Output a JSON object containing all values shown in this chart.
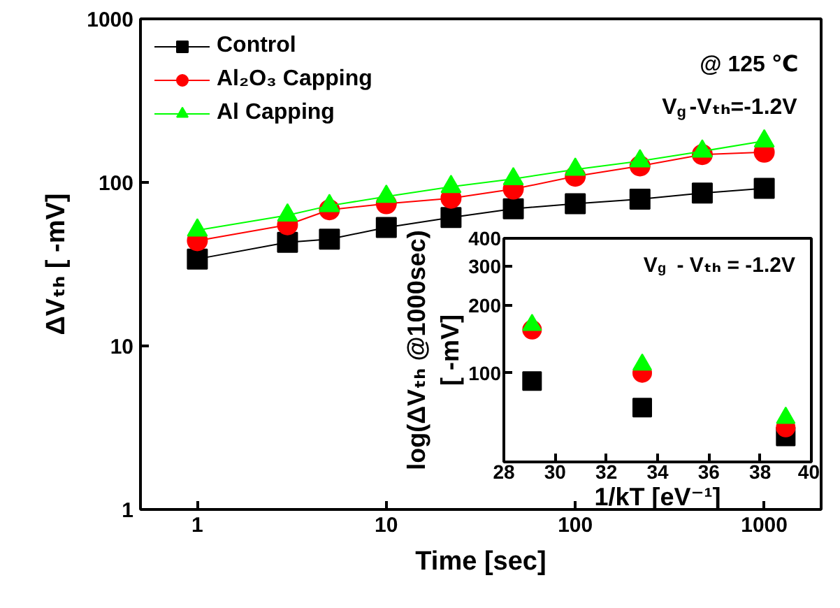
{
  "chart_data": [
    {
      "type": "line",
      "xlabel": "Time [sec]",
      "ylabel": "ΔVₜₕ [ -mV]",
      "log": "xy",
      "xlim": [
        0.5,
        2000
      ],
      "ylim": [
        1,
        1000
      ],
      "xticks": [
        1,
        10,
        100,
        1000
      ],
      "yticks": [
        1,
        10,
        100,
        1000
      ],
      "legend": "top left",
      "annotations": [
        "@ 125 ℃",
        "V$_{g}$-Vₜₕ=-1.2V"
      ],
      "x": [
        1,
        3,
        5,
        10,
        22,
        47,
        100,
        220,
        470,
        1000
      ],
      "series": [
        {
          "name": "Control",
          "color": "#000000",
          "marker": "square",
          "values": [
            34,
            43,
            45,
            53,
            61,
            69,
            74,
            79,
            86,
            92
          ]
        },
        {
          "name": "Al₂O₃ Capping",
          "color": "#ff0000",
          "marker": "circle",
          "values": [
            44,
            55,
            68,
            74,
            80,
            91,
            109,
            126,
            148,
            153
          ]
        },
        {
          "name": "Al Capping",
          "color": "#00ff00",
          "marker": "triangle",
          "values": [
            51,
            63,
            72,
            82,
            94,
            105,
            120,
            135,
            155,
            179
          ]
        }
      ]
    },
    {
      "type": "scatter",
      "xlabel": "1/kT [eV⁻¹]",
      "ylabel": "log(ΔVₜₕ @1000sec)\n[ -mV]",
      "log": "y",
      "xlim": [
        28,
        40
      ],
      "ylim": [
        40,
        400
      ],
      "xticks": [
        28,
        30,
        32,
        34,
        36,
        38,
        40
      ],
      "yticks": [
        100,
        200,
        300,
        400
      ],
      "annotations": [
        "V$_{g}$ - Vₜₕ = -1.2V"
      ],
      "x": [
        29.1,
        33.4,
        39.0
      ],
      "series": [
        {
          "color": "#000000",
          "marker": "square",
          "values": [
            92,
            70,
            52
          ]
        },
        {
          "color": "#ff0000",
          "marker": "circle",
          "values": [
            156,
            100,
            57
          ]
        },
        {
          "color": "#00ff00",
          "marker": "triangle",
          "values": [
            164,
            109,
            63
          ]
        }
      ]
    }
  ]
}
